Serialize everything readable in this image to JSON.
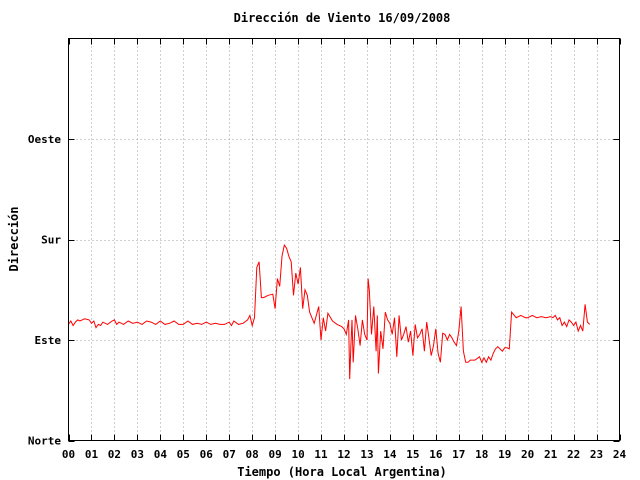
{
  "chart_data": {
    "type": "line",
    "title": "Dirección de Viento 16/09/2008",
    "xlabel": "Tiempo (Hora Local Argentina)",
    "ylabel": "Dirección",
    "xlim": [
      0,
      24
    ],
    "ylim": [
      0,
      360
    ],
    "x_ticks": [
      {
        "value": 0,
        "label": "00"
      },
      {
        "value": 1,
        "label": "01"
      },
      {
        "value": 2,
        "label": "02"
      },
      {
        "value": 3,
        "label": "03"
      },
      {
        "value": 4,
        "label": "04"
      },
      {
        "value": 5,
        "label": "05"
      },
      {
        "value": 6,
        "label": "06"
      },
      {
        "value": 7,
        "label": "07"
      },
      {
        "value": 8,
        "label": "08"
      },
      {
        "value": 9,
        "label": "09"
      },
      {
        "value": 10,
        "label": "10"
      },
      {
        "value": 11,
        "label": "11"
      },
      {
        "value": 12,
        "label": "12"
      },
      {
        "value": 13,
        "label": "13"
      },
      {
        "value": 14,
        "label": "14"
      },
      {
        "value": 15,
        "label": "15"
      },
      {
        "value": 16,
        "label": "16"
      },
      {
        "value": 17,
        "label": "17"
      },
      {
        "value": 18,
        "label": "18"
      },
      {
        "value": 19,
        "label": "19"
      },
      {
        "value": 20,
        "label": "20"
      },
      {
        "value": 21,
        "label": "21"
      },
      {
        "value": 22,
        "label": "22"
      },
      {
        "value": 23,
        "label": "23"
      },
      {
        "value": 24,
        "label": "24"
      }
    ],
    "y_ticks": [
      {
        "value": 0,
        "label": "Norte"
      },
      {
        "value": 90,
        "label": "Este"
      },
      {
        "value": 180,
        "label": "Sur"
      },
      {
        "value": 270,
        "label": "Oeste"
      }
    ],
    "grid": true,
    "legend": "none",
    "series": [
      {
        "color": "#ff0000",
        "x": [
          0.0,
          0.1,
          0.2,
          0.3,
          0.4,
          0.5,
          0.7,
          0.9,
          1.0,
          1.1,
          1.2,
          1.3,
          1.4,
          1.5,
          1.7,
          1.9,
          2.0,
          2.1,
          2.2,
          2.4,
          2.6,
          2.8,
          3.0,
          3.2,
          3.4,
          3.6,
          3.8,
          4.0,
          4.2,
          4.4,
          4.6,
          4.8,
          5.0,
          5.2,
          5.4,
          5.6,
          5.8,
          6.0,
          6.2,
          6.4,
          6.6,
          6.8,
          7.0,
          7.1,
          7.2,
          7.4,
          7.6,
          7.8,
          7.9,
          8.0,
          8.1,
          8.2,
          8.3,
          8.4,
          8.5,
          8.7,
          8.9,
          9.0,
          9.1,
          9.2,
          9.3,
          9.4,
          9.5,
          9.6,
          9.7,
          9.8,
          9.9,
          10.0,
          10.1,
          10.2,
          10.3,
          10.4,
          10.5,
          10.7,
          10.9,
          11.0,
          11.1,
          11.2,
          11.3,
          11.5,
          11.7,
          11.9,
          12.0,
          12.1,
          12.2,
          12.25,
          12.3,
          12.35,
          12.4,
          12.5,
          12.6,
          12.7,
          12.8,
          12.9,
          13.0,
          13.05,
          13.1,
          13.2,
          13.3,
          13.4,
          13.45,
          13.5,
          13.6,
          13.7,
          13.8,
          13.9,
          14.0,
          14.1,
          14.2,
          14.3,
          14.4,
          14.5,
          14.6,
          14.7,
          14.8,
          14.9,
          15.0,
          15.1,
          15.2,
          15.3,
          15.4,
          15.5,
          15.6,
          15.7,
          15.8,
          15.9,
          16.0,
          16.1,
          16.2,
          16.3,
          16.4,
          16.5,
          16.6,
          16.7,
          16.8,
          16.9,
          17.0,
          17.1,
          17.2,
          17.3,
          17.4,
          17.5,
          17.7,
          17.9,
          18.0,
          18.1,
          18.2,
          18.3,
          18.4,
          18.5,
          18.6,
          18.7,
          18.9,
          19.0,
          19.1,
          19.2,
          19.3,
          19.5,
          19.7,
          19.9,
          20.0,
          20.2,
          20.4,
          20.6,
          20.8,
          21.0,
          21.1,
          21.2,
          21.3,
          21.4,
          21.5,
          21.6,
          21.7,
          21.8,
          21.9,
          22.0,
          22.1,
          22.2,
          22.3,
          22.4,
          22.5,
          22.6,
          22.7
        ],
        "y": [
          104,
          107,
          103,
          106,
          108,
          107,
          109,
          108,
          105,
          107,
          101,
          104,
          103,
          106,
          104,
          107,
          108,
          104,
          106,
          104,
          107,
          105,
          106,
          104,
          107,
          106,
          104,
          107,
          104,
          105,
          107,
          104,
          104,
          107,
          104,
          105,
          104,
          106,
          104,
          105,
          104,
          104,
          106,
          103,
          107,
          104,
          105,
          108,
          112,
          103,
          110,
          155,
          160,
          128,
          128,
          130,
          131,
          118,
          145,
          138,
          165,
          175,
          172,
          165,
          160,
          130,
          150,
          140,
          155,
          118,
          135,
          130,
          115,
          105,
          120,
          90,
          110,
          98,
          114,
          107,
          104,
          102,
          100,
          95,
          108,
          55,
          85,
          108,
          70,
          112,
          100,
          85,
          108,
          95,
          90,
          145,
          135,
          95,
          120,
          80,
          112,
          60,
          98,
          82,
          115,
          108,
          105,
          95,
          110,
          75,
          112,
          90,
          95,
          102,
          88,
          98,
          76,
          104,
          92,
          95,
          100,
          80,
          106,
          92,
          76,
          85,
          100,
          78,
          70,
          96,
          95,
          90,
          95,
          92,
          88,
          85,
          98,
          120,
          80,
          70,
          70,
          72,
          72,
          75,
          70,
          74,
          70,
          75,
          72,
          78,
          82,
          84,
          80,
          83,
          83,
          82,
          115,
          110,
          112,
          110,
          110,
          112,
          110,
          111,
          110,
          111,
          110,
          112,
          108,
          110,
          103,
          106,
          102,
          108,
          106,
          103,
          106,
          98,
          103,
          98,
          122,
          106,
          104
        ]
      }
    ]
  }
}
